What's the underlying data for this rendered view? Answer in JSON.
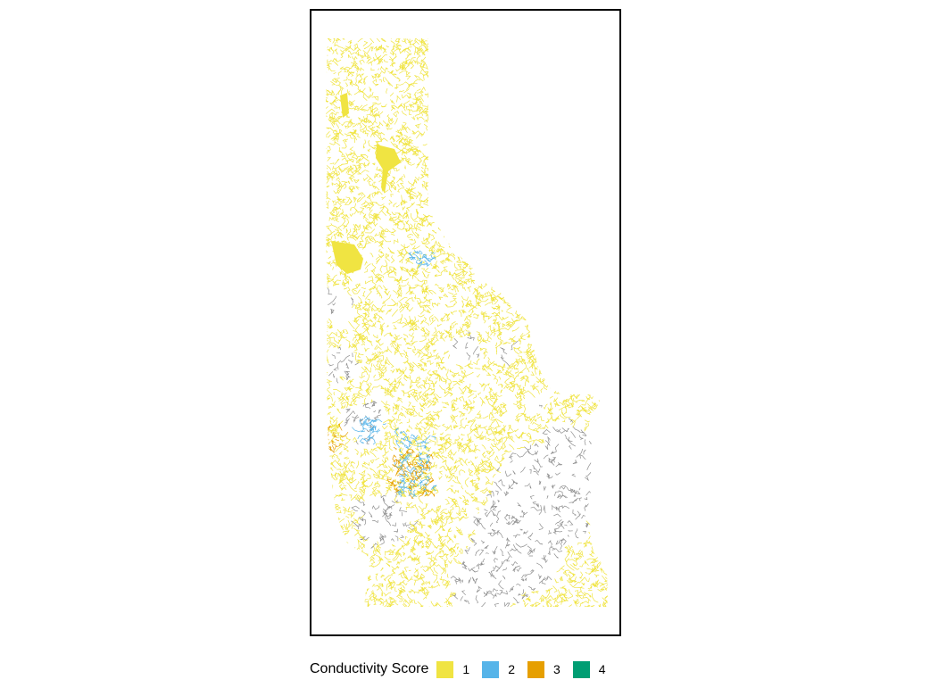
{
  "legend": {
    "title": "Conductivity Score",
    "items": [
      {
        "label": "1",
        "color": "#F0E442"
      },
      {
        "label": "2",
        "color": "#56B4E9"
      },
      {
        "label": "3",
        "color": "#E69F00"
      },
      {
        "label": "4",
        "color": "#009E73"
      }
    ]
  },
  "colors": {
    "unscored_streams": "#8f8f8f",
    "frame": "#000000"
  }
}
